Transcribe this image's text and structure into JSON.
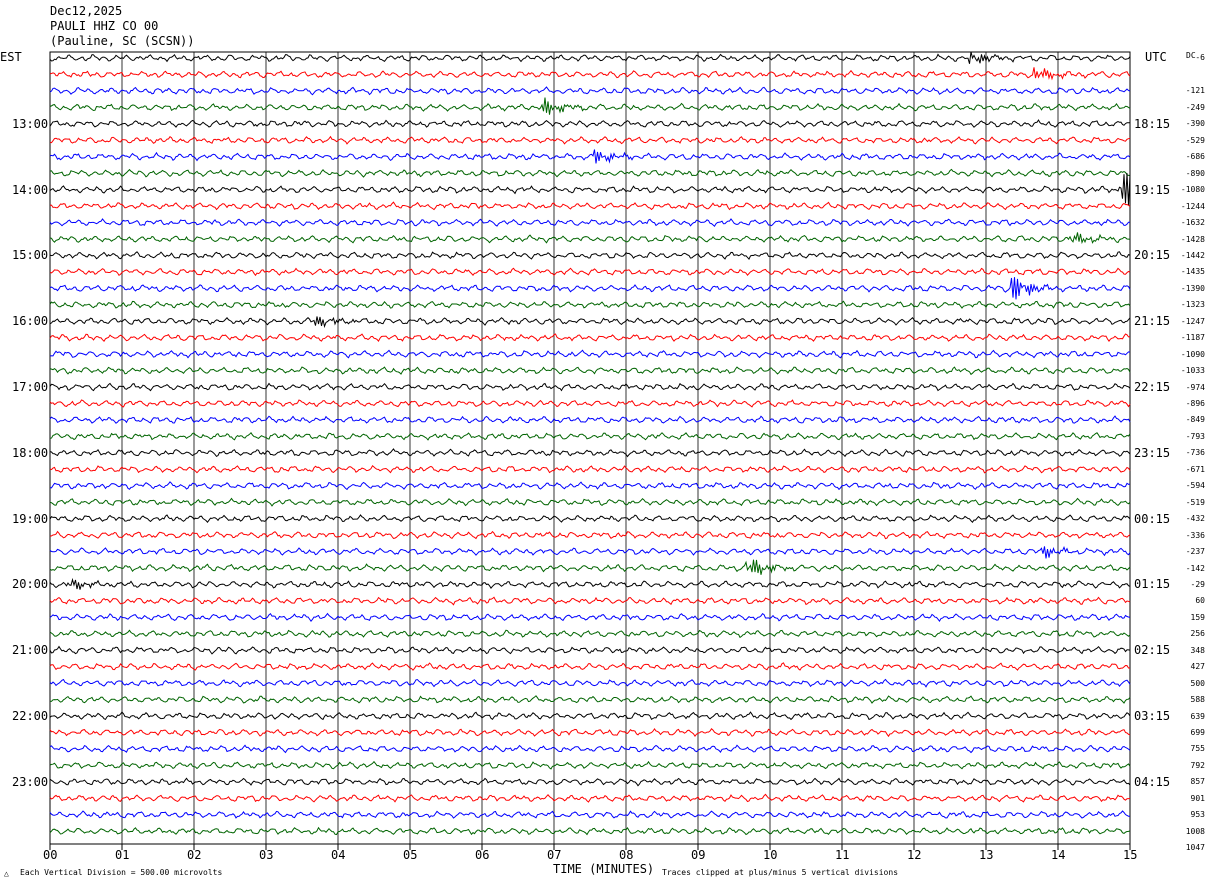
{
  "header": {
    "date": "Dec12,2025",
    "station": "PAULI HHZ CO 00",
    "location": "(Pauline, SC (SCSN))"
  },
  "left_tz": "EST",
  "right_tz": "UTC",
  "dc_label": "DC",
  "left_hour_labels": [
    "13:00",
    "14:00",
    "15:00",
    "16:00",
    "17:00",
    "18:00",
    "19:00",
    "20:00",
    "21:00",
    "22:00",
    "23:00"
  ],
  "right_hour_labels": [
    "18:15",
    "19:15",
    "20:15",
    "21:15",
    "22:15",
    "23:15",
    "00:15",
    "01:15",
    "02:15",
    "03:15",
    "04:15"
  ],
  "dc_offsets": [
    "-6",
    "-121",
    "-249",
    "-390",
    "-529",
    "-686",
    "-890",
    "-1080",
    "-1244",
    "-1632",
    "-1428",
    "-1442",
    "-1435",
    "-1390",
    "-1323",
    "-1247",
    "-1187",
    "-1090",
    "-1033",
    "-974",
    "-896",
    "-849",
    "-793",
    "-736",
    "-671",
    "-594",
    "-519",
    "-432",
    "-336",
    "-237",
    "-142",
    "-29",
    "60",
    "159",
    "256",
    "348",
    "427",
    "500",
    "588",
    "639",
    "699",
    "755",
    "792",
    "857",
    "901",
    "953",
    "1008",
    "1047"
  ],
  "x_ticks": [
    "00",
    "01",
    "02",
    "03",
    "04",
    "05",
    "06",
    "07",
    "08",
    "09",
    "10",
    "11",
    "12",
    "13",
    "14",
    "15"
  ],
  "x_axis_label": "TIME (MINUTES)",
  "footer_left": "Each Vertical Division =  500.00 microvolts",
  "footer_right": "Traces clipped at plus/minus 5 vertical divisions",
  "colors": {
    "trace_cycle": [
      "#000000",
      "#ff0000",
      "#0000ff",
      "#006400"
    ],
    "grid": "#000000",
    "background": "#ffffff"
  },
  "chart_data": {
    "type": "line",
    "title": "PAULI HHZ CO 00",
    "xlabel": "TIME (MINUTES)",
    "xlim": [
      0,
      15
    ],
    "grid": true,
    "trace_count": 48,
    "minutes_per_trace": 15,
    "left_axis_timezone": "EST",
    "right_axis_timezone": "UTC",
    "events": [
      {
        "trace": 0,
        "minute": 12.8,
        "amplitude": 1.6
      },
      {
        "trace": 1,
        "minute": 13.7,
        "amplitude": 1.8
      },
      {
        "trace": 3,
        "minute": 6.9,
        "amplitude": 1.8
      },
      {
        "trace": 6,
        "minute": 7.6,
        "amplitude": 1.7
      },
      {
        "trace": 8,
        "minute": 14.9,
        "amplitude": 6
      },
      {
        "trace": 11,
        "minute": 14.2,
        "amplitude": 1.5
      },
      {
        "trace": 14,
        "minute": 13.4,
        "amplitude": 3
      },
      {
        "trace": 16,
        "minute": 3.7,
        "amplitude": 1.4
      },
      {
        "trace": 30,
        "minute": 13.8,
        "amplitude": 1.5
      },
      {
        "trace": 31,
        "minute": 9.7,
        "amplitude": 2.6
      },
      {
        "trace": 32,
        "minute": 0.3,
        "amplitude": 1.4
      }
    ]
  }
}
